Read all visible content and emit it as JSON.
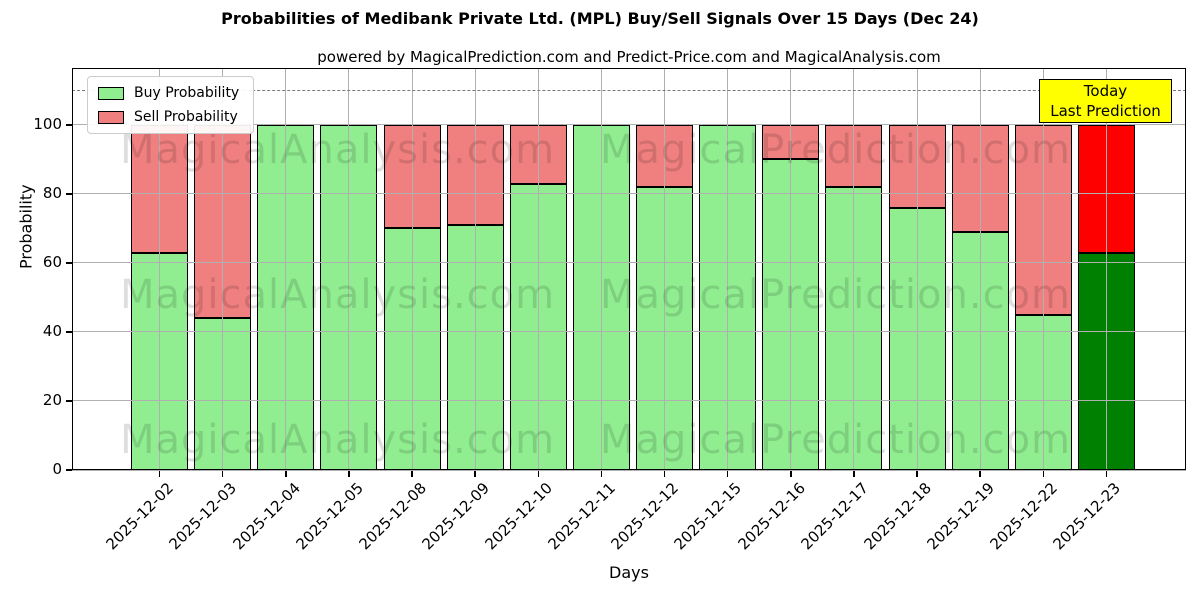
{
  "title": "Probabilities of Medibank Private Ltd. (MPL) Buy/Sell Signals Over 15 Days (Dec 24)",
  "subtitle": "powered by MagicalPrediction.com and Predict-Price.com and MagicalAnalysis.com",
  "legend": [
    {
      "label": "Buy Probability",
      "color": "#90EE90"
    },
    {
      "label": "Sell Probability",
      "color": "#F08080"
    }
  ],
  "annotation": {
    "lines": [
      "Today",
      "Last Prediction"
    ],
    "bg_color": "#FFFF00",
    "border_color": "#000000"
  },
  "watermarks": [
    "MagicalAnalysis.com",
    "MagicalPrediction.com"
  ],
  "chart_data": {
    "type": "bar",
    "stacked": true,
    "xlabel": "Days",
    "ylabel": "Probability",
    "categories": [
      "2025-12-02",
      "2025-12-03",
      "2025-12-04",
      "2025-12-05",
      "2025-12-08",
      "2025-12-09",
      "2025-12-10",
      "2025-12-11",
      "2025-12-12",
      "2025-12-15",
      "2025-12-16",
      "2025-12-17",
      "2025-12-18",
      "2025-12-19",
      "2025-12-22",
      "2025-12-23"
    ],
    "series": [
      {
        "name": "Buy Probability",
        "color": "#90EE90",
        "values": [
          63,
          44,
          100,
          100,
          70,
          71,
          83,
          100,
          82,
          100,
          90,
          82,
          76,
          69,
          45,
          63
        ]
      },
      {
        "name": "Sell Probability",
        "color": "#F08080",
        "values": [
          37,
          56,
          0,
          0,
          30,
          29,
          17,
          0,
          18,
          0,
          10,
          18,
          24,
          31,
          55,
          37
        ]
      }
    ],
    "today_colors": {
      "buy": "#008000",
      "sell": "#FF0000"
    },
    "yticks": [
      0,
      20,
      40,
      60,
      80,
      100
    ],
    "ylim": [
      0,
      116.5
    ],
    "dashed_line_y": 110,
    "grid": true,
    "legend_position": "upper left",
    "bar_edge_color": "#000000",
    "grid_color": "#b0b0b0"
  }
}
